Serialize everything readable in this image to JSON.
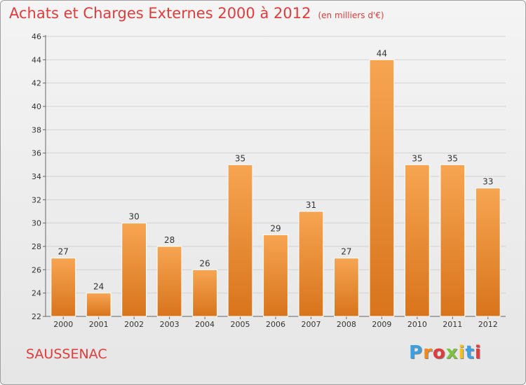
{
  "header": {
    "title": "Achats et Charges Externes 2000 à 2012",
    "unit": "(en milliers d'€)"
  },
  "footer": {
    "commune": "SAUSSENAC",
    "logo_letters": [
      "P",
      "r",
      "o",
      "x",
      "i",
      "t",
      "i"
    ],
    "logo_colors": [
      "#3aa0e0",
      "#f08a20",
      "#e23b3b",
      "#7cc242",
      "#f0c020",
      "#3aa0e0",
      "#e23b3b"
    ]
  },
  "chart_data": {
    "type": "bar",
    "title": "Achats et Charges Externes 2000 à 2012",
    "subtitle": "(en milliers d'€)",
    "categories": [
      "2000",
      "2001",
      "2002",
      "2003",
      "2004",
      "2005",
      "2006",
      "2007",
      "2008",
      "2009",
      "2010",
      "2011",
      "2012"
    ],
    "values": [
      27,
      24,
      30,
      28,
      26,
      35,
      29,
      31,
      27,
      44,
      35,
      35,
      33
    ],
    "ylim": [
      22,
      46
    ],
    "yticks": [
      22,
      24,
      26,
      28,
      30,
      32,
      34,
      36,
      38,
      40,
      42,
      44,
      46
    ],
    "grid": true,
    "bar_color_top": "#f7a552",
    "bar_color_bottom": "#d8741c",
    "data_labels": true
  }
}
